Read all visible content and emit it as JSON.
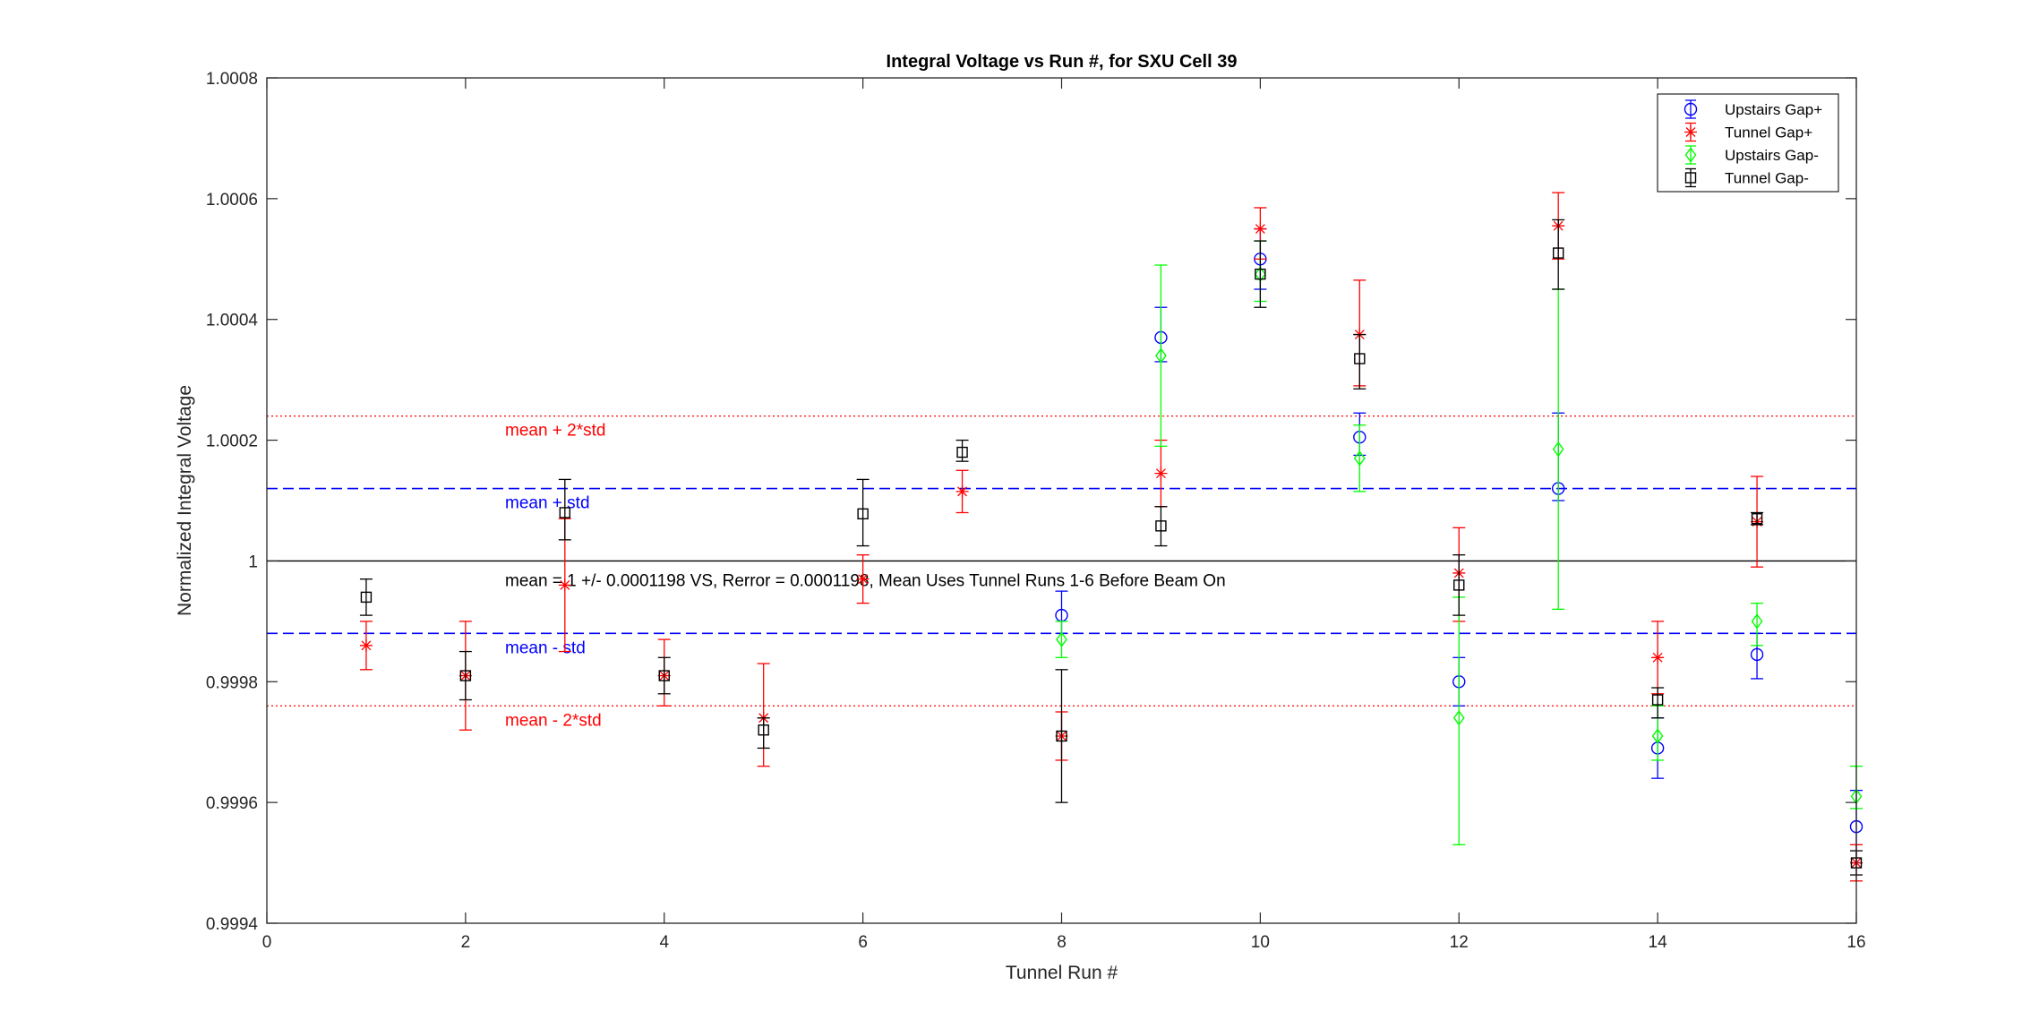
{
  "chart_data": {
    "type": "scatter",
    "title": "Integral Voltage vs Run #, for SXU Cell 39",
    "xlabel": "Tunnel Run #",
    "ylabel": "Normalized Integral Voltage",
    "xlim": [
      0,
      16
    ],
    "ylim": [
      0.9994,
      1.0008
    ],
    "grid": false,
    "legend_position": "top-right",
    "x_ticks": [
      0,
      2,
      4,
      6,
      8,
      10,
      12,
      14,
      16
    ],
    "x_tick_labels": [
      "0",
      "2",
      "4",
      "6",
      "8",
      "10",
      "12",
      "14",
      "16"
    ],
    "y_ticks": [
      0.9994,
      0.9996,
      0.9998,
      1,
      1.0002,
      1.0004,
      1.0006,
      1.0008
    ],
    "y_tick_labels": [
      "0.9994",
      "0.9996",
      "0.9998",
      "1",
      "1.0002",
      "1.0004",
      "1.0006",
      "1.0008"
    ],
    "series": [
      {
        "name": "Upstairs Gap+",
        "color": "#0000ff",
        "marker": "circle",
        "points": [
          {
            "x": 8,
            "y": 0.99991,
            "lo": 0.99988,
            "hi": 0.99995
          },
          {
            "x": 9,
            "y": 1.00037,
            "lo": 1.00033,
            "hi": 1.00042
          },
          {
            "x": 10,
            "y": 1.0005,
            "lo": 1.00045,
            "hi": 1.00055
          },
          {
            "x": 11,
            "y": 1.000205,
            "lo": 1.000175,
            "hi": 1.000245
          },
          {
            "x": 12,
            "y": 0.9998,
            "lo": 0.99976,
            "hi": 0.99984
          },
          {
            "x": 13,
            "y": 1.00012,
            "lo": 1.0001,
            "hi": 1.000245
          },
          {
            "x": 14,
            "y": 0.99969,
            "lo": 0.99964,
            "hi": 0.99974
          },
          {
            "x": 15,
            "y": 0.999845,
            "lo": 0.999805,
            "hi": 0.99988
          },
          {
            "x": 16,
            "y": 0.99956,
            "lo": 0.9995,
            "hi": 0.99962
          }
        ]
      },
      {
        "name": "Tunnel Gap+",
        "color": "#ff0000",
        "marker": "asterisk",
        "points": [
          {
            "x": 1,
            "y": 0.99986,
            "lo": 0.99982,
            "hi": 0.9999
          },
          {
            "x": 2,
            "y": 0.99981,
            "lo": 0.99972,
            "hi": 0.9999
          },
          {
            "x": 3,
            "y": 0.99996,
            "lo": 0.99985,
            "hi": 1.00007
          },
          {
            "x": 4,
            "y": 0.99981,
            "lo": 0.99976,
            "hi": 0.99987
          },
          {
            "x": 5,
            "y": 0.99974,
            "lo": 0.99966,
            "hi": 0.99983
          },
          {
            "x": 6,
            "y": 0.99997,
            "lo": 0.99993,
            "hi": 1.00001
          },
          {
            "x": 7,
            "y": 1.000115,
            "lo": 1.00008,
            "hi": 1.00015
          },
          {
            "x": 8,
            "y": 0.99971,
            "lo": 0.99967,
            "hi": 0.99975
          },
          {
            "x": 9,
            "y": 1.000145,
            "lo": 1.00009,
            "hi": 1.0002
          },
          {
            "x": 10,
            "y": 1.00055,
            "lo": 1.0005,
            "hi": 1.000585
          },
          {
            "x": 11,
            "y": 1.000375,
            "lo": 1.00029,
            "hi": 1.000465
          },
          {
            "x": 12,
            "y": 0.99998,
            "lo": 0.9999,
            "hi": 1.000055
          },
          {
            "x": 13,
            "y": 1.000555,
            "lo": 1.0005,
            "hi": 1.00061
          },
          {
            "x": 14,
            "y": 0.99984,
            "lo": 0.99978,
            "hi": 0.9999
          },
          {
            "x": 15,
            "y": 1.000065,
            "lo": 0.99999,
            "hi": 1.00014
          },
          {
            "x": 16,
            "y": 0.9995,
            "lo": 0.99947,
            "hi": 0.99953
          }
        ]
      },
      {
        "name": "Upstairs Gap-",
        "color": "#00ff00",
        "marker": "diamond",
        "points": [
          {
            "x": 8,
            "y": 0.99987,
            "lo": 0.99984,
            "hi": 0.9999
          },
          {
            "x": 9,
            "y": 1.00034,
            "lo": 1.00019,
            "hi": 1.00049
          },
          {
            "x": 10,
            "y": 1.000475,
            "lo": 1.00043,
            "hi": 1.00053
          },
          {
            "x": 11,
            "y": 1.00017,
            "lo": 1.000115,
            "hi": 1.000225
          },
          {
            "x": 12,
            "y": 0.99974,
            "lo": 0.99953,
            "hi": 0.99994
          },
          {
            "x": 13,
            "y": 1.000185,
            "lo": 0.99992,
            "hi": 1.00045
          },
          {
            "x": 14,
            "y": 0.99971,
            "lo": 0.99967,
            "hi": 0.99976
          },
          {
            "x": 15,
            "y": 0.9999,
            "lo": 0.99986,
            "hi": 0.99993
          },
          {
            "x": 16,
            "y": 0.99961,
            "lo": 0.99959,
            "hi": 0.99966
          }
        ]
      },
      {
        "name": "Tunnel Gap-",
        "color": "#000000",
        "marker": "square",
        "points": [
          {
            "x": 1,
            "y": 0.99994,
            "lo": 0.99991,
            "hi": 0.99997
          },
          {
            "x": 2,
            "y": 0.99981,
            "lo": 0.99977,
            "hi": 0.99985
          },
          {
            "x": 3,
            "y": 1.00008,
            "lo": 1.000035,
            "hi": 1.000135
          },
          {
            "x": 4,
            "y": 0.99981,
            "lo": 0.99978,
            "hi": 0.99984
          },
          {
            "x": 5,
            "y": 0.99972,
            "lo": 0.99969,
            "hi": 0.99974
          },
          {
            "x": 6,
            "y": 1.000078,
            "lo": 1.000025,
            "hi": 1.000135
          },
          {
            "x": 7,
            "y": 1.00018,
            "lo": 1.000165,
            "hi": 1.0002
          },
          {
            "x": 8,
            "y": 0.99971,
            "lo": 0.9996,
            "hi": 0.99982
          },
          {
            "x": 9,
            "y": 1.000058,
            "lo": 1.000025,
            "hi": 1.00009
          },
          {
            "x": 10,
            "y": 1.000475,
            "lo": 1.00042,
            "hi": 1.00053
          },
          {
            "x": 11,
            "y": 1.000335,
            "lo": 1.000285,
            "hi": 1.000375
          },
          {
            "x": 12,
            "y": 0.99996,
            "lo": 0.99991,
            "hi": 1.00001
          },
          {
            "x": 13,
            "y": 1.00051,
            "lo": 1.00045,
            "hi": 1.000565
          },
          {
            "x": 14,
            "y": 0.99977,
            "lo": 0.99974,
            "hi": 0.99979
          },
          {
            "x": 15,
            "y": 1.00007,
            "lo": 1.00006,
            "hi": 1.00008
          },
          {
            "x": 16,
            "y": 0.9995,
            "lo": 0.99948,
            "hi": 0.99952
          }
        ]
      }
    ],
    "reference_lines": [
      {
        "y": 1.00024,
        "color": "#ff0000",
        "style": "dotted",
        "label": "mean + 2*std"
      },
      {
        "y": 1.00012,
        "color": "#0000ff",
        "style": "dashed",
        "label": "mean + std"
      },
      {
        "y": 1.0,
        "color": "#000000",
        "style": "solid",
        "label": "mean = 1 +/- 0.0001198 VS, Rerror = 0.0001198, Mean Uses Tunnel Runs 1-6 Before Beam On"
      },
      {
        "y": 0.99988,
        "color": "#0000ff",
        "style": "dashed",
        "label": "mean - std"
      },
      {
        "y": 0.99976,
        "color": "#ff0000",
        "style": "dotted",
        "label": "mean - 2*std"
      }
    ]
  }
}
